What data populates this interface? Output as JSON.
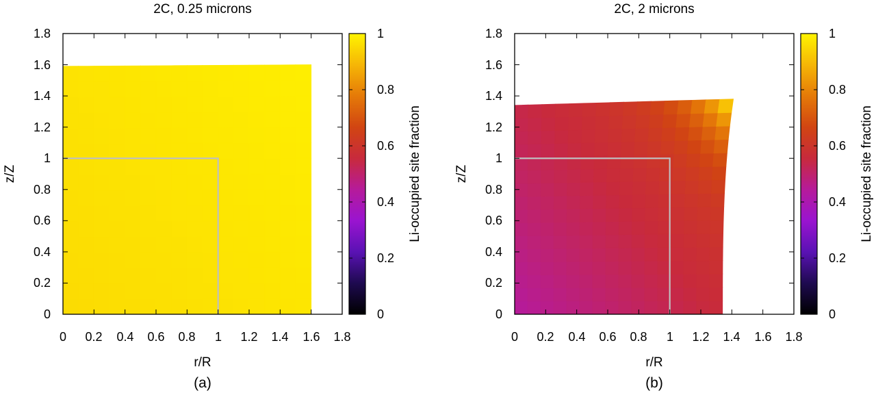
{
  "chart_data": [
    {
      "type": "heatmap",
      "title": "2C, 0.25 microns",
      "caption": "(a)",
      "xlabel": "r/R",
      "ylabel": "z/Z",
      "xlim": [
        0,
        1.8
      ],
      "ylim": [
        0,
        1.8
      ],
      "xticks": [
        "0",
        "0.2",
        "0.4",
        "0.6",
        "0.8",
        "1",
        "1.2",
        "1.4",
        "1.6",
        "1.8"
      ],
      "yticks": [
        "0",
        "0.2",
        "0.4",
        "0.6",
        "0.8",
        "1",
        "1.2",
        "1.4",
        "1.6",
        "1.8"
      ],
      "colorbar": {
        "label": "Li-occupied site fraction",
        "range": [
          0,
          1
        ],
        "ticks": [
          "0",
          "0.2",
          "0.4",
          "0.6",
          "0.8",
          "1"
        ],
        "palette": [
          "#000000",
          "#1e0a50",
          "#5a12b4",
          "#9a14d0",
          "#b61b9a",
          "#c82a3c",
          "#d14512",
          "#e57a08",
          "#f6b606",
          "#fff400"
        ]
      },
      "reference_box": {
        "r": 1.0,
        "z": 1.0,
        "color": "#bfbfbf"
      },
      "domain": {
        "r_max_bottom": 1.6,
        "r_max_top": 1.6,
        "z_top_left": 1.59,
        "z_top_right": 1.6
      },
      "field": {
        "base": 0.955,
        "dr": 0.02,
        "dz": 0.015,
        "corner": 0.0
      }
    },
    {
      "type": "heatmap",
      "title": "2C, 2 microns",
      "caption": "(b)",
      "xlabel": "r/R",
      "ylabel": "z/Z",
      "xlim": [
        0,
        1.8
      ],
      "ylim": [
        0,
        1.8
      ],
      "xticks": [
        "0",
        "0.2",
        "0.4",
        "0.6",
        "0.8",
        "1",
        "1.2",
        "1.4",
        "1.6",
        "1.8"
      ],
      "yticks": [
        "0",
        "0.2",
        "0.4",
        "0.6",
        "0.8",
        "1",
        "1.2",
        "1.4",
        "1.6",
        "1.8"
      ],
      "colorbar": {
        "label": "Li-occupied site fraction",
        "range": [
          0,
          1
        ],
        "ticks": [
          "0",
          "0.2",
          "0.4",
          "0.6",
          "0.8",
          "1"
        ],
        "palette": [
          "#000000",
          "#1e0a50",
          "#5a12b4",
          "#9a14d0",
          "#b61b9a",
          "#c82a3c",
          "#d14512",
          "#e57a08",
          "#f6b606",
          "#fff400"
        ]
      },
      "reference_box": {
        "r": 1.0,
        "z": 1.0,
        "color": "#bfbfbf"
      },
      "domain": {
        "r_max_bottom": 1.34,
        "r_max_top": 1.41,
        "z_top_left": 1.34,
        "z_top_right": 1.38
      },
      "field": {
        "base": 0.44,
        "dr": 0.12,
        "dz": 0.1,
        "corner": 0.35
      }
    }
  ]
}
